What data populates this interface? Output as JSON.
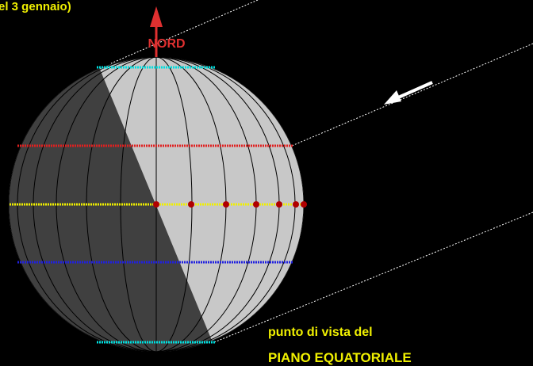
{
  "caption_top": "el 3 gennaio)",
  "north_label": "NORD",
  "viewpoint": {
    "line1": "punto di vista del",
    "line2": "PIANO EQUATORIALE"
  }
}
